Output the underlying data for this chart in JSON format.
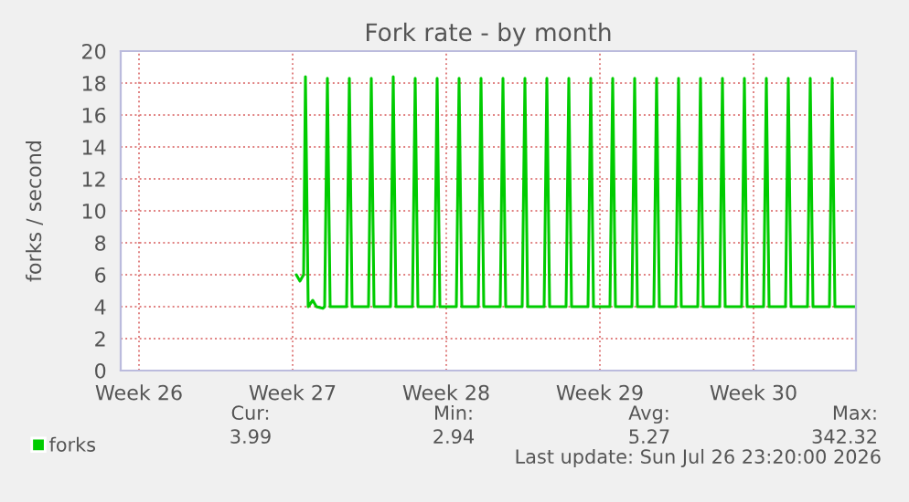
{
  "chart_data": {
    "type": "line",
    "title": "Fork rate - by month",
    "ylabel": "forks / second",
    "xlim": [
      "2026-06-24T16:00",
      "2026-07-28T04:00"
    ],
    "xticks": [
      {
        "value": "2026-06-25T12:00",
        "label": "Week 26"
      },
      {
        "value": "2026-07-02T12:00",
        "label": "Week 27"
      },
      {
        "value": "2026-07-09T12:00",
        "label": "Week 28"
      },
      {
        "value": "2026-07-16T12:00",
        "label": "Week 29"
      },
      {
        "value": "2026-07-23T12:00",
        "label": "Week 30"
      }
    ],
    "ylim": [
      0,
      20
    ],
    "yticks": [
      0,
      2,
      4,
      6,
      8,
      10,
      12,
      14,
      16,
      18,
      20
    ],
    "grid": true,
    "legend": "bottom left",
    "series": [
      {
        "name": "forks",
        "color": "#00cc00",
        "x": [
          "2026-07-02T16:00",
          "2026-07-02T20:00",
          "2026-07-03T00:00",
          "2026-07-03T02:00",
          "2026-07-03T05:00",
          "2026-07-03T10:00",
          "2026-07-03T14:00",
          "2026-07-03T21:00",
          "2026-07-03T23:00",
          "2026-07-04T02:00",
          "2026-07-04T05:00",
          "2026-07-04T23:00",
          "2026-07-05T02:00",
          "2026-07-05T05:00",
          "2026-07-05T23:00",
          "2026-07-06T02:00",
          "2026-07-06T05:00",
          "2026-07-06T23:00",
          "2026-07-07T02:00",
          "2026-07-07T05:00",
          "2026-07-07T23:00",
          "2026-07-08T02:00",
          "2026-07-08T05:00",
          "2026-07-08T23:00",
          "2026-07-09T02:00",
          "2026-07-09T05:00",
          "2026-07-09T23:00",
          "2026-07-10T02:00",
          "2026-07-10T05:00",
          "2026-07-10T23:00",
          "2026-07-11T02:00",
          "2026-07-11T05:00",
          "2026-07-11T23:00",
          "2026-07-12T02:00",
          "2026-07-12T05:00",
          "2026-07-12T23:00",
          "2026-07-13T02:00",
          "2026-07-13T05:00",
          "2026-07-13T23:00",
          "2026-07-14T02:00",
          "2026-07-14T05:00",
          "2026-07-14T23:00",
          "2026-07-15T02:00",
          "2026-07-15T05:00",
          "2026-07-15T23:00",
          "2026-07-16T02:00",
          "2026-07-16T05:00",
          "2026-07-16T23:00",
          "2026-07-17T02:00",
          "2026-07-17T05:00",
          "2026-07-17T23:00",
          "2026-07-18T02:00",
          "2026-07-18T05:00",
          "2026-07-18T23:00",
          "2026-07-19T02:00",
          "2026-07-19T05:00",
          "2026-07-19T23:00",
          "2026-07-20T02:00",
          "2026-07-20T05:00",
          "2026-07-20T23:00",
          "2026-07-21T02:00",
          "2026-07-21T05:00",
          "2026-07-21T23:00",
          "2026-07-22T02:00",
          "2026-07-22T05:00",
          "2026-07-22T23:00",
          "2026-07-23T02:00",
          "2026-07-23T05:00",
          "2026-07-23T23:00",
          "2026-07-24T02:00",
          "2026-07-24T05:00",
          "2026-07-24T23:00",
          "2026-07-25T02:00",
          "2026-07-25T05:00",
          "2026-07-25T23:00",
          "2026-07-26T02:00",
          "2026-07-26T05:00",
          "2026-07-26T23:00",
          "2026-07-27T02:00",
          "2026-07-27T05:00",
          "2026-07-28T04:00"
        ],
        "values": [
          6.0,
          5.6,
          6.0,
          18.4,
          4.0,
          4.4,
          4.0,
          3.9,
          4.0,
          18.3,
          4.0,
          4.0,
          18.3,
          4.0,
          4.0,
          18.3,
          4.0,
          4.0,
          18.4,
          4.0,
          4.0,
          18.3,
          4.0,
          4.0,
          18.3,
          4.0,
          4.0,
          18.3,
          4.0,
          4.0,
          18.3,
          4.0,
          4.0,
          18.3,
          4.0,
          4.0,
          18.3,
          4.0,
          4.0,
          18.3,
          4.0,
          4.0,
          18.3,
          4.0,
          4.0,
          18.3,
          4.0,
          4.0,
          18.3,
          4.0,
          4.0,
          18.3,
          4.0,
          4.0,
          18.3,
          4.0,
          4.0,
          18.3,
          4.0,
          4.0,
          18.3,
          4.0,
          4.0,
          18.3,
          4.0,
          4.0,
          18.3,
          4.0,
          4.0,
          18.3,
          4.0,
          4.0,
          18.3,
          4.0,
          4.0,
          18.3,
          4.0,
          4.0,
          18.3,
          4.0,
          4.0
        ]
      }
    ],
    "annotations": [
      "Cur:",
      "Min:",
      "Avg:",
      "Max:",
      "3.99",
      "2.94",
      "5.27",
      "342.32",
      "Last update: Sun Jul 26 23:20:00 2026"
    ]
  }
}
